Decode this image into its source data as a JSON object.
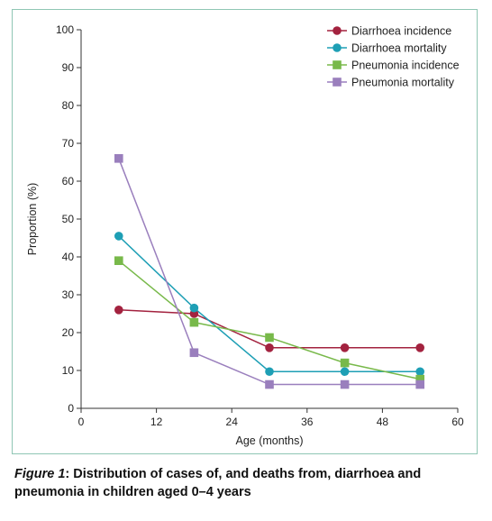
{
  "chart_data": {
    "type": "line",
    "xlabel": "Age (months)",
    "ylabel": "Proportion (%)",
    "xlim": [
      0,
      60
    ],
    "ylim": [
      0,
      100
    ],
    "xticks": [
      0,
      12,
      24,
      36,
      48,
      60
    ],
    "yticks": [
      0,
      10,
      20,
      30,
      40,
      50,
      60,
      70,
      80,
      90,
      100
    ],
    "grid": false,
    "legend_position": "top-right",
    "x": [
      6,
      18,
      30,
      42,
      54
    ],
    "series": [
      {
        "name": "Diarrhoea incidence",
        "values": [
          26,
          25,
          16,
          16,
          16
        ],
        "color": "#a3223f",
        "marker": "circle"
      },
      {
        "name": "Diarrhoea mortality",
        "values": [
          45.5,
          26.5,
          9.7,
          9.7,
          9.7
        ],
        "color": "#1e9fb5",
        "marker": "circle"
      },
      {
        "name": "Pneumonia incidence",
        "values": [
          39,
          22.7,
          18.7,
          12,
          7.7
        ],
        "color": "#78b94a",
        "marker": "square"
      },
      {
        "name": "Pneumonia mortality",
        "values": [
          66,
          14.7,
          6.3,
          6.3,
          6.3
        ],
        "color": "#9a7fbd",
        "marker": "square"
      }
    ]
  },
  "caption": {
    "label": "Figure 1",
    "text": ": Distribution of cases of, and deaths from, diarrhoea and pneumonia in children aged 0–4 years"
  }
}
